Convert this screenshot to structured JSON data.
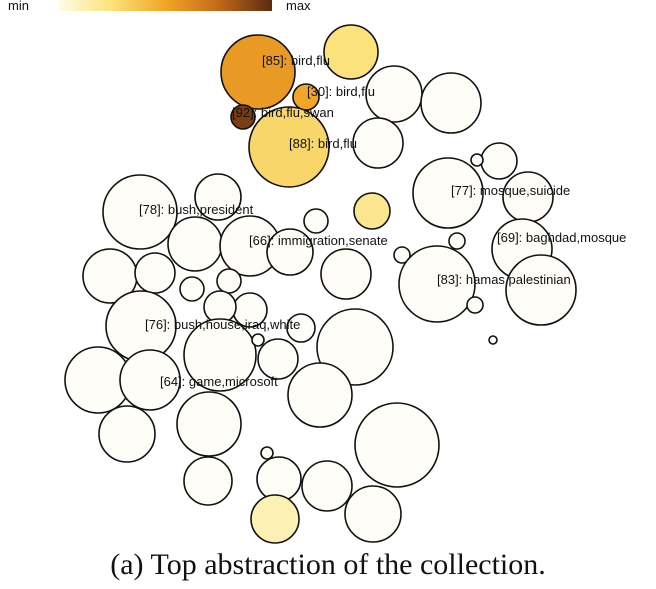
{
  "legend": {
    "min_label": "min",
    "max_label": "max",
    "gradient": [
      "#fffde8",
      "#fbe27a",
      "#f1a626",
      "#c26a1a",
      "#5a2a10"
    ]
  },
  "caption": "(a)  Top abstraction of the collection.",
  "colors": {
    "stroke": "#111111",
    "base_fill": "#fffdf7",
    "label": "#111111"
  },
  "topics": [
    {
      "label": "[85]: bird,flu",
      "level": 0.55
    },
    {
      "label": "[30]: bird,flu",
      "level": 0.5
    },
    {
      "label": "[92]: bird,flu,swan",
      "level": 0.92
    },
    {
      "label": "[88]: bird,flu",
      "level": 0.3
    },
    {
      "label": "[77]: mosque,suicide",
      "level": 0.0
    },
    {
      "label": "[78]: bush,president",
      "level": 0.0
    },
    {
      "label": "[66]: immigration,senate",
      "level": 0.0
    },
    {
      "label": "[69]: baghdad,mosque",
      "level": 0.0
    },
    {
      "label": "[83]: hamas,palestinian",
      "level": 0.0
    },
    {
      "label": "[76]: bush,house,iraq,white",
      "level": 0.0
    },
    {
      "label": "[64]: game,microsoft",
      "level": 0.0
    }
  ]
}
